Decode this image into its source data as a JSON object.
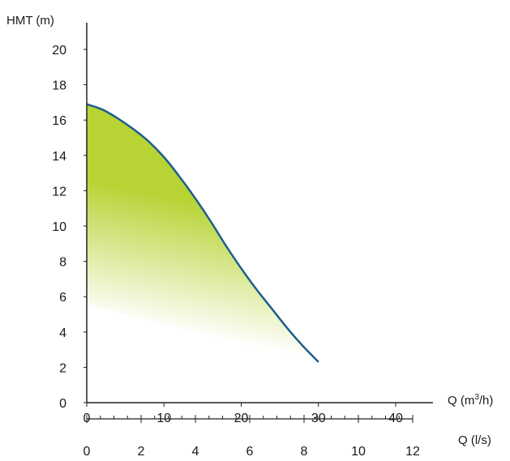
{
  "chart_data": {
    "type": "area",
    "ylabel": "HMT (m)",
    "xlabel": "Q (m³/h)",
    "xlabel_parts": [
      "Q (m",
      "3",
      "/h)"
    ],
    "x2label": "Q (l/s)",
    "ylim": [
      0,
      21
    ],
    "xlim": [
      0,
      45
    ],
    "x2lim": [
      0,
      12
    ],
    "yticks": [
      0,
      2,
      4,
      6,
      8,
      10,
      12,
      14,
      16,
      18,
      20
    ],
    "xticks": [
      0,
      10,
      20,
      30,
      40
    ],
    "x2ticks_major": [
      0,
      2,
      4,
      6,
      8,
      10,
      12
    ],
    "x2ticks_minor_step": 0.5,
    "grid": false,
    "series": [
      {
        "x": [
          0,
          2,
          4,
          6,
          8,
          10,
          12,
          14,
          16,
          18,
          20,
          22,
          24,
          26,
          28,
          30
        ],
        "y": [
          16.9,
          16.6,
          16.1,
          15.5,
          14.8,
          13.9,
          12.8,
          11.6,
          10.3,
          8.9,
          7.6,
          6.4,
          5.3,
          4.2,
          3.2,
          2.3
        ]
      }
    ],
    "colors": {
      "curve": "#1d5e8c",
      "fill": "#b7d334",
      "axis": "#222222"
    }
  }
}
